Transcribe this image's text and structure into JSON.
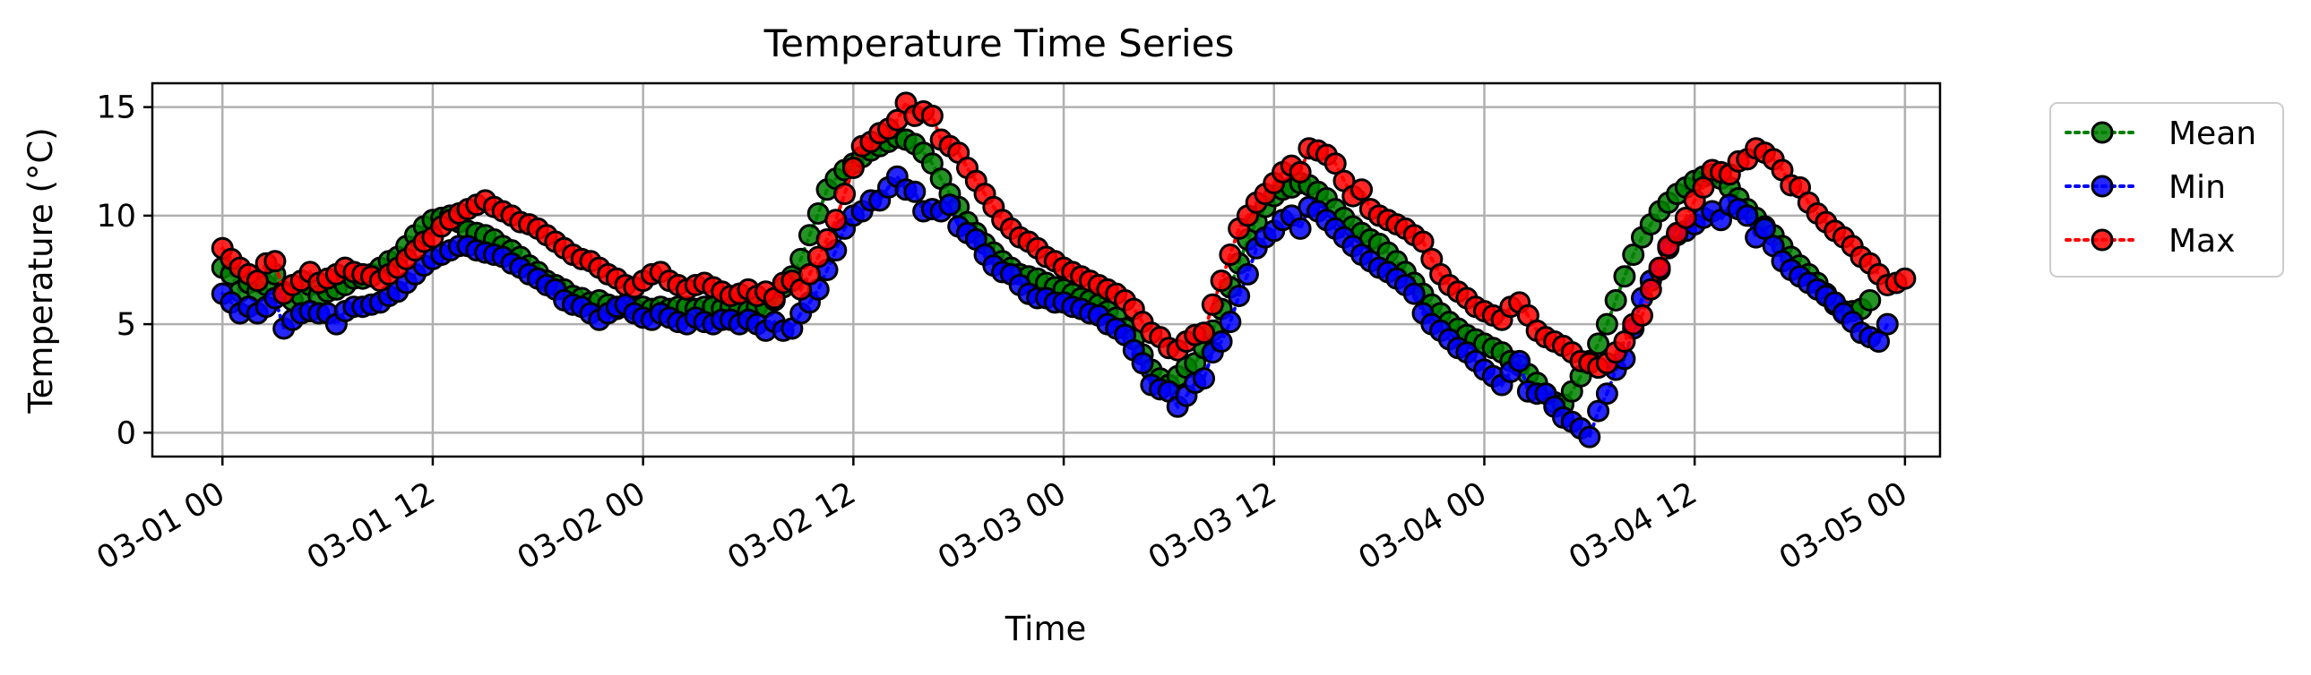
{
  "chart_data": {
    "type": "line",
    "title": "Temperature Time Series",
    "xlabel": "Time",
    "ylabel": "Temperature (°C)",
    "x_start": "03-01 00",
    "x_step_hours": 0.5,
    "x_range_hours": [
      -4,
      98
    ],
    "x_ticks": [
      "03-01 00",
      "03-01 12",
      "03-02 00",
      "03-02 12",
      "03-03 00",
      "03-03 12",
      "03-04 00",
      "03-04 12",
      "03-05 00"
    ],
    "ylim": [
      -1.1,
      16.1
    ],
    "y_ticks": [
      0,
      5,
      10,
      15
    ],
    "grid": true,
    "legend_position": "outside-right",
    "series": [
      {
        "name": "Mean",
        "color": "#008000",
        "style": "dotted",
        "marker": "circle",
        "values": [
          7.6,
          7.3,
          6.5,
          6.9,
          6.5,
          6.8,
          7.3,
          6.5,
          6.1,
          6.3,
          6.8,
          6.3,
          6.5,
          6.6,
          6.8,
          7.1,
          7.1,
          7.3,
          7.6,
          7.9,
          8.1,
          8.6,
          9.1,
          9.5,
          9.8,
          9.9,
          10.0,
          9.7,
          9.3,
          9.2,
          9.1,
          8.9,
          8.6,
          8.4,
          8.1,
          7.7,
          7.4,
          7.0,
          6.8,
          6.6,
          6.3,
          6.2,
          6.0,
          6.1,
          5.9,
          5.7,
          5.8,
          5.7,
          5.8,
          5.7,
          5.8,
          5.7,
          5.8,
          5.8,
          5.7,
          5.8,
          5.8,
          5.7,
          5.8,
          5.8,
          5.6,
          5.8,
          5.8,
          6.1,
          6.7,
          7.2,
          8.0,
          9.1,
          10.1,
          11.2,
          11.7,
          12.1,
          12.4,
          12.7,
          13.0,
          13.2,
          13.4,
          13.6,
          13.5,
          13.3,
          12.9,
          12.4,
          11.7,
          11.0,
          10.4,
          9.7,
          9.2,
          8.7,
          8.3,
          7.9,
          7.6,
          7.3,
          7.2,
          7.1,
          6.9,
          6.7,
          6.6,
          6.4,
          6.2,
          6.1,
          5.9,
          5.6,
          5.3,
          4.8,
          4.3,
          3.6,
          2.9,
          2.5,
          2.2,
          2.6,
          3.0,
          3.2,
          3.9,
          4.7,
          5.7,
          6.7,
          7.8,
          8.9,
          9.7,
          10.4,
          10.9,
          11.2,
          11.3,
          11.5,
          11.4,
          11.1,
          10.8,
          10.3,
          9.9,
          9.5,
          9.2,
          8.9,
          8.7,
          8.3,
          7.9,
          7.4,
          6.9,
          6.4,
          5.9,
          5.5,
          5.1,
          4.8,
          4.5,
          4.3,
          4.1,
          3.9,
          3.7,
          3.3,
          3.1,
          2.7,
          2.3,
          1.8,
          1.4,
          1.3,
          1.9,
          2.6,
          3.3,
          4.1,
          5.0,
          6.1,
          7.2,
          8.2,
          9.0,
          9.6,
          10.2,
          10.6,
          11.0,
          11.3,
          11.6,
          11.8,
          11.9,
          11.7,
          11.3,
          10.8,
          10.3,
          9.9,
          9.5,
          9.1,
          8.6,
          8.1,
          7.7,
          7.3,
          6.9,
          6.4,
          5.9,
          5.6,
          5.6,
          5.7,
          6.1
        ]
      },
      {
        "name": "Min",
        "color": "#0000ff",
        "style": "dotted",
        "marker": "circle",
        "values": [
          6.4,
          6.0,
          5.5,
          5.8,
          5.5,
          5.8,
          6.2,
          4.8,
          5.2,
          5.5,
          5.6,
          5.5,
          5.5,
          5.0,
          5.6,
          5.8,
          5.8,
          5.9,
          6.0,
          6.3,
          6.5,
          6.9,
          7.3,
          7.7,
          8.0,
          8.2,
          8.4,
          8.6,
          8.6,
          8.4,
          8.3,
          8.2,
          8.1,
          7.8,
          7.6,
          7.3,
          7.1,
          6.8,
          6.6,
          6.1,
          5.9,
          5.8,
          5.5,
          5.2,
          5.5,
          5.8,
          5.9,
          5.5,
          5.3,
          5.2,
          5.5,
          5.3,
          5.1,
          5.0,
          5.3,
          5.1,
          5.0,
          5.2,
          5.2,
          5.0,
          5.2,
          5.0,
          4.7,
          5.1,
          4.7,
          4.8,
          5.5,
          6.0,
          6.6,
          7.5,
          8.4,
          9.4,
          10.0,
          10.2,
          10.7,
          10.7,
          11.3,
          11.8,
          11.2,
          11.1,
          10.2,
          10.3,
          10.2,
          10.5,
          9.5,
          9.2,
          8.9,
          8.2,
          7.7,
          7.4,
          7.3,
          6.8,
          6.4,
          6.2,
          6.2,
          6.0,
          6.0,
          5.8,
          5.7,
          5.5,
          5.4,
          5.0,
          4.8,
          4.5,
          3.8,
          3.2,
          2.2,
          2.0,
          1.9,
          1.2,
          1.7,
          2.3,
          2.5,
          3.7,
          4.2,
          5.1,
          6.3,
          7.3,
          8.5,
          9.0,
          9.3,
          9.8,
          10.0,
          9.4,
          10.4,
          10.2,
          9.8,
          9.4,
          9.0,
          8.6,
          8.2,
          7.9,
          7.6,
          7.4,
          7.1,
          6.8,
          6.4,
          5.5,
          5.0,
          4.7,
          4.3,
          3.9,
          3.7,
          3.3,
          2.9,
          2.6,
          2.2,
          2.8,
          3.3,
          1.9,
          1.8,
          1.8,
          1.2,
          0.7,
          0.5,
          0.2,
          -0.2,
          1.0,
          1.8,
          2.9,
          3.4,
          4.8,
          6.2,
          7.0,
          7.5,
          8.5,
          9.1,
          9.3,
          9.6,
          9.9,
          10.2,
          9.8,
          10.5,
          10.3,
          10.0,
          9.0,
          9.4,
          8.6,
          7.9,
          7.5,
          7.2,
          6.9,
          6.6,
          6.3,
          6.0,
          5.5,
          5.1,
          4.6,
          4.4,
          4.2,
          5.0
        ]
      },
      {
        "name": "Max",
        "color": "#ff0000",
        "style": "dotted",
        "marker": "circle",
        "values": [
          8.5,
          8.0,
          7.6,
          7.3,
          7.0,
          7.8,
          7.9,
          6.4,
          6.8,
          7.0,
          7.4,
          6.9,
          7.1,
          7.3,
          7.6,
          7.4,
          7.3,
          7.2,
          7.0,
          7.3,
          7.6,
          8.0,
          8.4,
          8.8,
          9.0,
          9.5,
          9.8,
          10.1,
          10.3,
          10.5,
          10.7,
          10.4,
          10.2,
          10.0,
          9.7,
          9.6,
          9.4,
          9.1,
          8.8,
          8.5,
          8.2,
          8.0,
          7.9,
          7.6,
          7.3,
          7.1,
          6.8,
          6.7,
          7.0,
          7.3,
          7.4,
          7.0,
          6.8,
          6.6,
          6.8,
          6.9,
          6.7,
          6.5,
          6.3,
          6.4,
          6.6,
          6.3,
          6.5,
          6.2,
          6.9,
          7.0,
          6.6,
          7.3,
          8.1,
          8.9,
          9.8,
          11.0,
          12.2,
          13.2,
          13.4,
          13.8,
          14.0,
          14.4,
          15.2,
          14.6,
          14.8,
          14.6,
          13.5,
          13.2,
          12.9,
          12.2,
          11.6,
          11.0,
          10.4,
          9.8,
          9.4,
          9.0,
          8.8,
          8.5,
          8.1,
          7.9,
          7.6,
          7.4,
          7.2,
          7.0,
          6.8,
          6.6,
          6.4,
          6.1,
          5.7,
          5.1,
          4.6,
          4.4,
          3.9,
          3.8,
          4.2,
          4.5,
          4.6,
          5.9,
          7.0,
          8.2,
          9.4,
          10.0,
          10.6,
          11.0,
          11.5,
          12.0,
          12.3,
          12.0,
          13.1,
          13.0,
          12.8,
          12.4,
          11.6,
          10.9,
          11.2,
          10.3,
          10.0,
          9.8,
          9.6,
          9.4,
          9.1,
          8.8,
          8.0,
          7.3,
          6.8,
          6.5,
          6.2,
          5.8,
          5.6,
          5.4,
          5.2,
          5.8,
          6.0,
          5.4,
          4.7,
          4.4,
          4.2,
          4.0,
          3.7,
          3.3,
          3.2,
          3.0,
          3.2,
          3.7,
          4.2,
          5.0,
          5.4,
          6.6,
          7.6,
          8.6,
          9.2,
          9.9,
          10.7,
          11.3,
          12.1,
          12.0,
          11.9,
          12.5,
          12.6,
          13.1,
          12.9,
          12.6,
          12.1,
          11.4,
          11.3,
          10.6,
          10.1,
          9.7,
          9.3,
          9.0,
          8.6,
          8.1,
          7.8,
          7.3,
          6.8,
          6.9,
          7.1
        ]
      }
    ]
  }
}
